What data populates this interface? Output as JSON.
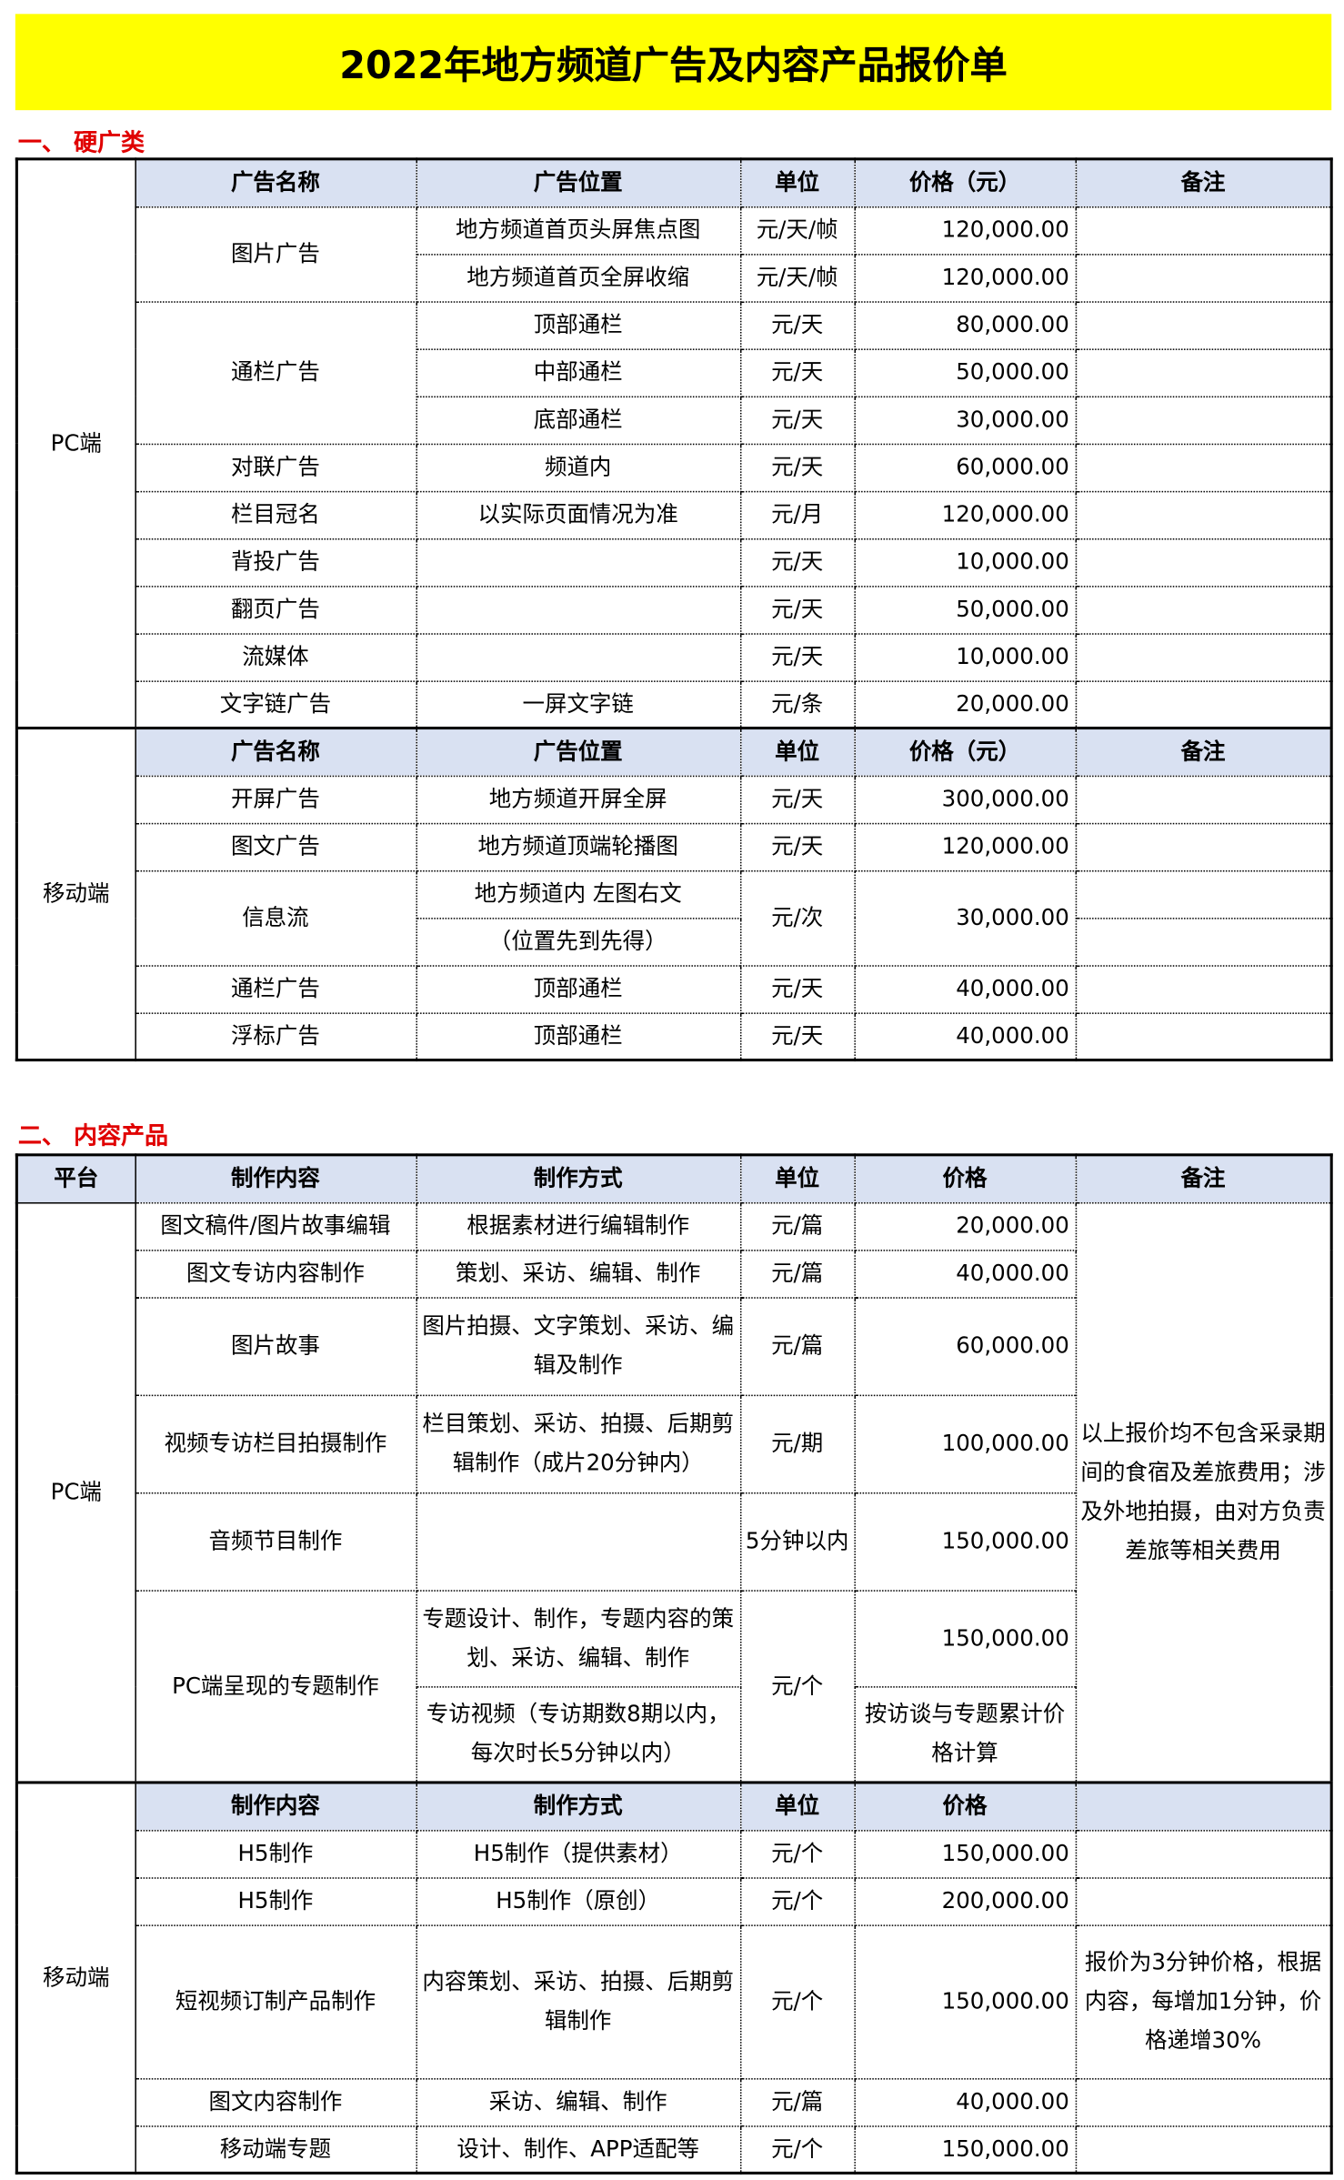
{
  "title": "2022年地方频道广告及内容产品报价单",
  "section1": {
    "label": "一、 硬广类",
    "pc": {
      "platform": "PC端",
      "headers": [
        "广告名称",
        "广告位置",
        "单位",
        "价格（元）",
        "备注"
      ],
      "rows": [
        {
          "name": "图片广告",
          "position": "地方频道首页头屏焦点图",
          "unit": "元/天/帧",
          "price": "120,000.00"
        },
        {
          "position": "地方频道首页全屏收缩",
          "unit": "元/天/帧",
          "price": "120,000.00"
        },
        {
          "name": "通栏广告",
          "position": "顶部通栏",
          "unit": "元/天",
          "price": "80,000.00"
        },
        {
          "position": "中部通栏",
          "unit": "元/天",
          "price": "50,000.00"
        },
        {
          "position": "底部通栏",
          "unit": "元/天",
          "price": "30,000.00"
        },
        {
          "name": "对联广告",
          "position": "频道内",
          "unit": "元/天",
          "price": "60,000.00"
        },
        {
          "name": "栏目冠名",
          "position": "以实际页面情况为准",
          "unit": "元/月",
          "price": "120,000.00"
        },
        {
          "name": "背投广告",
          "position": "",
          "unit": "元/天",
          "price": "10,000.00"
        },
        {
          "name": "翻页广告",
          "position": "",
          "unit": "元/天",
          "price": "50,000.00"
        },
        {
          "name": "流媒体",
          "position": "",
          "unit": "元/天",
          "price": "10,000.00"
        },
        {
          "name": "文字链广告",
          "position": "一屏文字链",
          "unit": "元/条",
          "price": "20,000.00"
        }
      ]
    },
    "mobile": {
      "platform": "移动端",
      "headers": [
        "广告名称",
        "广告位置",
        "单位",
        "价格（元）",
        "备注"
      ],
      "rows": [
        {
          "name": "开屏广告",
          "position": "地方频道开屏全屏",
          "unit": "元/天",
          "price": "300,000.00"
        },
        {
          "name": "图文广告",
          "position": "地方频道顶端轮播图",
          "unit": "元/天",
          "price": "120,000.00"
        },
        {
          "name": "信息流",
          "position": "地方频道内 左图右文",
          "unit": "元/次",
          "price": "30,000.00"
        },
        {
          "position": "（位置先到先得）"
        },
        {
          "name": "通栏广告",
          "position": "顶部通栏",
          "unit": "元/天",
          "price": "40,000.00"
        },
        {
          "name": "浮标广告",
          "position": "顶部通栏",
          "unit": "元/天",
          "price": "40,000.00"
        }
      ]
    }
  },
  "section2": {
    "label": "二、 内容产品",
    "headers": [
      "平台",
      "制作内容",
      "制作方式",
      "单位",
      "价格",
      "备注"
    ],
    "pc": {
      "platform": "PC端",
      "note": "以上报价均不包含采录期间的食宿及差旅费用；涉及外地拍摄，由对方负责差旅等相关费用",
      "rows": [
        {
          "content": "图文稿件/图片故事编辑",
          "method": "根据素材进行编辑制作",
          "unit": "元/篇",
          "price": "20,000.00"
        },
        {
          "content": "图文专访内容制作",
          "method": "策划、采访、编辑、制作",
          "unit": "元/篇",
          "price": "40,000.00"
        },
        {
          "content": "图片故事",
          "method": "图片拍摄、文字策划、采访、编辑及制作",
          "unit": "元/篇",
          "price": "60,000.00"
        },
        {
          "content": "视频专访栏目拍摄制作",
          "method": "栏目策划、采访、拍摄、后期剪辑制作（成片20分钟内）",
          "unit": "元/期",
          "price": "100,000.00"
        },
        {
          "content": "音频节目制作",
          "method": "",
          "unit": "5分钟以内",
          "price": "150,000.00"
        },
        {
          "content": "PC端呈现的专题制作",
          "method": "专题设计、制作，专题内容的策划、采访、编辑、制作",
          "unit": "元/个",
          "price": "150,000.00"
        },
        {
          "method": "专访视频（专访期数8期以内，每次时长5分钟以内）",
          "price": "按访谈与专题累计价格计算"
        }
      ]
    },
    "mobile": {
      "platform": "移动端",
      "headers": [
        "制作内容",
        "制作方式",
        "单位",
        "价格"
      ],
      "rows": [
        {
          "content": "H5制作",
          "method": "H5制作（提供素材）",
          "unit": "元/个",
          "price": "150,000.00"
        },
        {
          "content": "H5制作",
          "method": "H5制作（原创）",
          "unit": "元/个",
          "price": "200,000.00"
        },
        {
          "content": "短视频订制产品制作",
          "method": "内容策划、采访、拍摄、后期剪辑制作",
          "unit": "元/个",
          "price": "150,000.00",
          "note": "报价为3分钟价格，根据内容，每增加1分钟，价格递增30%"
        },
        {
          "content": "图文内容制作",
          "method": "采访、编辑、制作",
          "unit": "元/篇",
          "price": "40,000.00"
        },
        {
          "content": "移动端专题",
          "method": "设计、制作、APP适配等",
          "unit": "元/个",
          "price": "150,000.00"
        }
      ]
    }
  },
  "colors": {
    "title_bg": "#ffff00",
    "section_label": "#e00000",
    "header_bg": "#d9e1f2"
  }
}
